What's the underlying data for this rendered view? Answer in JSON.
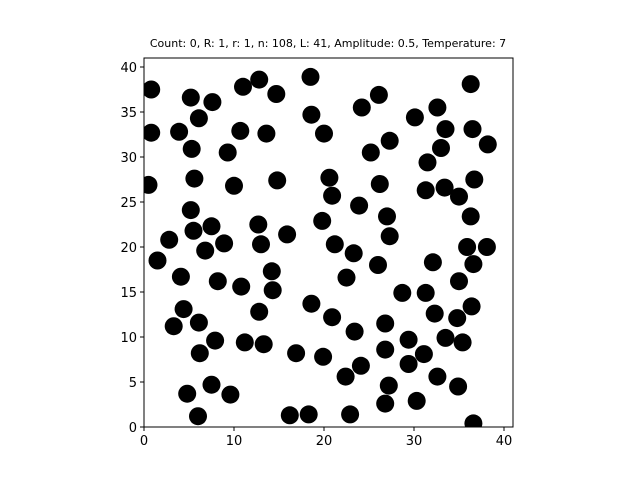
{
  "chart_data": {
    "type": "scatter",
    "title": "Count: 0, R: 1, r: 1, n: 108, L: 41, Amplitude: 0.5, Temperature: 7",
    "xlabel": "",
    "ylabel": "",
    "xlim": [
      0,
      41
    ],
    "ylim": [
      0,
      41
    ],
    "xticks": [
      0,
      10,
      20,
      30,
      40
    ],
    "yticks": [
      0,
      5,
      10,
      15,
      20,
      25,
      30,
      35,
      40
    ],
    "grid": false,
    "marker_color": "#000000",
    "marker_radius_data": 1,
    "points": [
      [
        0.8,
        37.5
      ],
      [
        0.8,
        32.7
      ],
      [
        0.5,
        26.9
      ],
      [
        1.5,
        18.5
      ],
      [
        2.8,
        20.8
      ],
      [
        3.3,
        11.2
      ],
      [
        3.9,
        32.8
      ],
      [
        4.1,
        16.7
      ],
      [
        4.4,
        13.1
      ],
      [
        5.2,
        36.6
      ],
      [
        5.3,
        30.9
      ],
      [
        5.2,
        24.1
      ],
      [
        5.5,
        21.8
      ],
      [
        5.6,
        27.6
      ],
      [
        6.1,
        34.3
      ],
      [
        7.6,
        36.1
      ],
      [
        6.8,
        19.6
      ],
      [
        7.5,
        22.3
      ],
      [
        6.1,
        11.6
      ],
      [
        6.2,
        8.2
      ],
      [
        8.2,
        16.2
      ],
      [
        7.9,
        9.6
      ],
      [
        7.5,
        4.7
      ],
      [
        4.8,
        3.7
      ],
      [
        6.0,
        1.2
      ],
      [
        9.3,
        30.5
      ],
      [
        8.9,
        20.4
      ],
      [
        10.0,
        26.8
      ],
      [
        10.7,
        32.9
      ],
      [
        11.0,
        37.8
      ],
      [
        10.8,
        15.6
      ],
      [
        11.2,
        9.4
      ],
      [
        9.6,
        3.6
      ],
      [
        12.8,
        38.6
      ],
      [
        13.6,
        32.6
      ],
      [
        12.7,
        22.5
      ],
      [
        13.0,
        20.3
      ],
      [
        14.2,
        17.3
      ],
      [
        14.3,
        15.2
      ],
      [
        12.8,
        12.8
      ],
      [
        13.3,
        9.2
      ],
      [
        14.7,
        37.0
      ],
      [
        14.8,
        27.4
      ],
      [
        15.9,
        21.4
      ],
      [
        16.2,
        1.3
      ],
      [
        16.9,
        8.2
      ],
      [
        18.5,
        38.9
      ],
      [
        18.6,
        34.7
      ],
      [
        20.0,
        32.6
      ],
      [
        20.6,
        27.7
      ],
      [
        20.9,
        25.7
      ],
      [
        19.8,
        22.9
      ],
      [
        21.2,
        20.3
      ],
      [
        18.6,
        13.7
      ],
      [
        20.9,
        12.2
      ],
      [
        19.9,
        7.8
      ],
      [
        18.3,
        1.4
      ],
      [
        24.2,
        35.5
      ],
      [
        26.1,
        36.9
      ],
      [
        25.2,
        30.5
      ],
      [
        27.3,
        31.8
      ],
      [
        26.2,
        27.0
      ],
      [
        23.9,
        24.6
      ],
      [
        27.0,
        23.4
      ],
      [
        27.3,
        21.2
      ],
      [
        23.3,
        19.3
      ],
      [
        26.0,
        18.0
      ],
      [
        22.5,
        16.6
      ],
      [
        23.4,
        10.6
      ],
      [
        26.8,
        11.5
      ],
      [
        26.8,
        8.6
      ],
      [
        24.1,
        6.8
      ],
      [
        22.4,
        5.6
      ],
      [
        27.2,
        4.6
      ],
      [
        26.8,
        2.6
      ],
      [
        22.9,
        1.4
      ],
      [
        30.1,
        34.4
      ],
      [
        32.6,
        35.5
      ],
      [
        33.5,
        33.1
      ],
      [
        33.0,
        31.0
      ],
      [
        31.5,
        29.4
      ],
      [
        31.3,
        26.3
      ],
      [
        33.4,
        26.6
      ],
      [
        35.0,
        25.6
      ],
      [
        32.1,
        18.3
      ],
      [
        28.7,
        14.9
      ],
      [
        31.3,
        14.9
      ],
      [
        32.3,
        12.6
      ],
      [
        29.4,
        9.7
      ],
      [
        31.1,
        8.1
      ],
      [
        29.4,
        7.0
      ],
      [
        32.6,
        5.6
      ],
      [
        30.3,
        2.9
      ],
      [
        36.3,
        38.1
      ],
      [
        36.5,
        33.1
      ],
      [
        38.2,
        31.4
      ],
      [
        36.7,
        27.5
      ],
      [
        36.3,
        23.4
      ],
      [
        35.9,
        20.0
      ],
      [
        38.1,
        20.0
      ],
      [
        36.6,
        18.1
      ],
      [
        35.0,
        16.2
      ],
      [
        36.4,
        13.4
      ],
      [
        33.5,
        9.9
      ],
      [
        34.8,
        12.1
      ],
      [
        35.4,
        9.4
      ],
      [
        34.9,
        4.5
      ],
      [
        36.6,
        0.4
      ]
    ]
  }
}
